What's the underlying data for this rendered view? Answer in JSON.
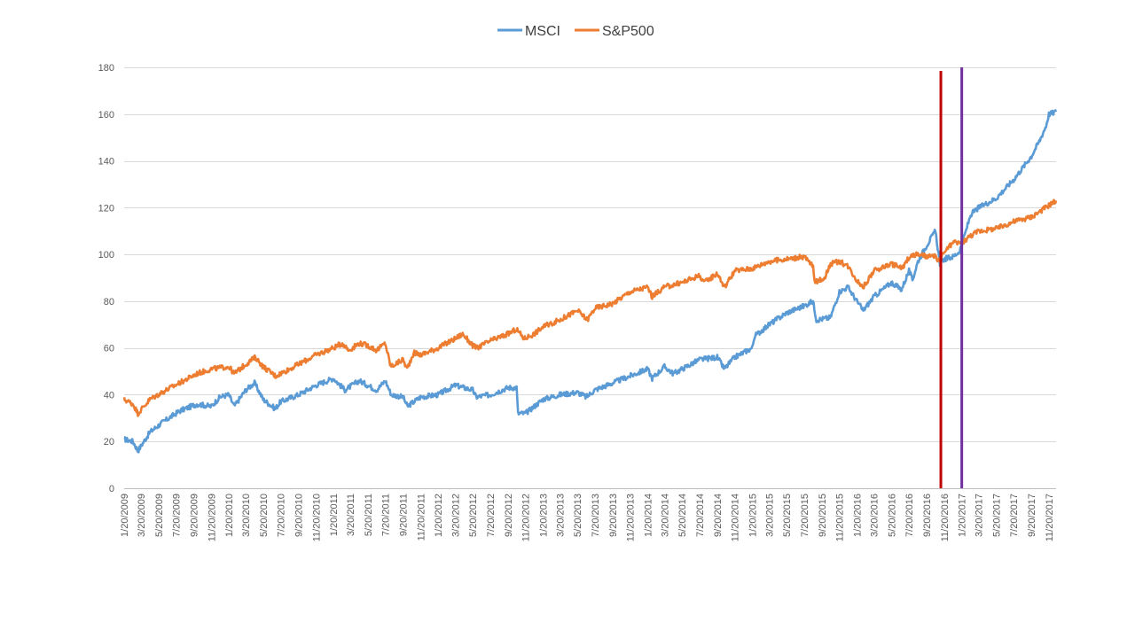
{
  "chart_data": {
    "type": "line",
    "title": "",
    "xlabel": "",
    "ylabel": "",
    "ylim": [
      0,
      180
    ],
    "yticks": [
      "0",
      "20",
      "40",
      "60",
      "80",
      "100",
      "120",
      "140",
      "160",
      "180"
    ],
    "grid": "horizontal",
    "legend_position": "top-center",
    "x_domain": [
      "2009-01-20",
      "2017-12-15"
    ],
    "xtick_labels": [
      "1/20/2009",
      "3/20/2009",
      "5/20/2009",
      "7/20/2009",
      "9/20/2009",
      "11/20/2009",
      "1/20/2010",
      "3/20/2010",
      "5/20/2010",
      "7/20/2010",
      "9/20/2010",
      "11/20/2010",
      "1/20/2011",
      "3/20/2011",
      "5/20/2011",
      "7/20/2011",
      "9/20/2011",
      "11/20/2011",
      "1/20/2012",
      "3/20/2012",
      "5/20/2012",
      "7/20/2012",
      "9/20/2012",
      "11/20/2012",
      "1/20/2013",
      "3/20/2013",
      "5/20/2013",
      "7/20/2013",
      "9/20/2013",
      "11/20/2013",
      "1/20/2014",
      "3/20/2014",
      "5/20/2014",
      "7/20/2014",
      "9/20/2014",
      "11/20/2014",
      "1/20/2015",
      "3/20/2015",
      "5/20/2015",
      "7/20/2015",
      "9/20/2015",
      "11/20/2015",
      "1/20/2016",
      "3/20/2016",
      "5/20/2016",
      "7/20/2016",
      "9/20/2016",
      "11/20/2016",
      "1/20/2017",
      "3/20/2017",
      "5/20/2017",
      "7/20/2017",
      "9/20/2017",
      "11/20/2017"
    ],
    "series": [
      {
        "name": "MSCI",
        "color": "#5B9BD5",
        "points": [
          [
            "2009-01-20",
            21
          ],
          [
            "2009-02-20",
            20
          ],
          [
            "2009-03-09",
            16
          ],
          [
            "2009-04-20",
            24
          ],
          [
            "2009-06-01",
            28
          ],
          [
            "2009-08-01",
            33
          ],
          [
            "2009-10-01",
            36
          ],
          [
            "2009-11-20",
            35
          ],
          [
            "2009-12-20",
            39
          ],
          [
            "2010-01-20",
            40
          ],
          [
            "2010-02-08",
            35
          ],
          [
            "2010-03-20",
            42
          ],
          [
            "2010-04-20",
            45
          ],
          [
            "2010-05-20",
            38
          ],
          [
            "2010-07-01",
            34
          ],
          [
            "2010-07-20",
            37
          ],
          [
            "2010-09-20",
            40
          ],
          [
            "2010-11-20",
            44
          ],
          [
            "2011-01-20",
            47
          ],
          [
            "2011-03-01",
            42
          ],
          [
            "2011-04-20",
            46
          ],
          [
            "2011-05-20",
            44
          ],
          [
            "2011-06-20",
            42
          ],
          [
            "2011-07-20",
            46
          ],
          [
            "2011-08-10",
            40
          ],
          [
            "2011-09-20",
            39
          ],
          [
            "2011-10-05",
            35
          ],
          [
            "2011-11-20",
            39
          ],
          [
            "2012-01-20",
            40
          ],
          [
            "2012-03-20",
            44
          ],
          [
            "2012-05-20",
            42
          ],
          [
            "2012-06-01",
            39
          ],
          [
            "2012-07-20",
            40
          ],
          [
            "2012-09-20",
            43
          ],
          [
            "2012-10-20",
            43
          ],
          [
            "2012-10-25",
            32
          ],
          [
            "2012-11-20",
            32
          ],
          [
            "2013-01-20",
            38
          ],
          [
            "2013-03-20",
            40
          ],
          [
            "2013-05-20",
            41
          ],
          [
            "2013-06-20",
            39
          ],
          [
            "2013-07-20",
            42
          ],
          [
            "2013-09-20",
            45
          ],
          [
            "2013-11-20",
            48
          ],
          [
            "2014-01-20",
            51
          ],
          [
            "2014-02-05",
            47
          ],
          [
            "2014-03-20",
            52
          ],
          [
            "2014-04-20",
            49
          ],
          [
            "2014-05-20",
            51
          ],
          [
            "2014-07-20",
            55
          ],
          [
            "2014-09-20",
            56
          ],
          [
            "2014-10-15",
            51
          ],
          [
            "2014-11-20",
            56
          ],
          [
            "2014-12-20",
            58
          ],
          [
            "2015-01-20",
            60
          ],
          [
            "2015-01-28",
            65
          ],
          [
            "2015-03-20",
            70
          ],
          [
            "2015-05-20",
            75
          ],
          [
            "2015-07-20",
            78
          ],
          [
            "2015-08-20",
            80
          ],
          [
            "2015-09-01",
            72
          ],
          [
            "2015-10-20",
            73
          ],
          [
            "2015-11-20",
            84
          ],
          [
            "2015-12-20",
            86
          ],
          [
            "2016-01-20",
            80
          ],
          [
            "2016-02-11",
            76
          ],
          [
            "2016-03-20",
            82
          ],
          [
            "2016-05-20",
            88
          ],
          [
            "2016-06-24",
            85
          ],
          [
            "2016-07-20",
            93
          ],
          [
            "2016-08-01",
            89
          ],
          [
            "2016-08-20",
            97
          ],
          [
            "2016-09-20",
            104
          ],
          [
            "2016-10-20",
            110
          ],
          [
            "2016-11-05",
            96
          ],
          [
            "2016-11-20",
            98
          ],
          [
            "2016-12-20",
            99
          ],
          [
            "2017-01-10",
            101
          ],
          [
            "2017-01-20",
            104
          ],
          [
            "2017-02-20",
            117
          ],
          [
            "2017-03-20",
            120
          ],
          [
            "2017-05-20",
            124
          ],
          [
            "2017-07-20",
            132
          ],
          [
            "2017-09-20",
            142
          ],
          [
            "2017-10-20",
            149
          ],
          [
            "2017-11-10",
            155
          ],
          [
            "2017-11-20",
            160
          ],
          [
            "2017-12-15",
            161
          ]
        ]
      },
      {
        "name": "S&P500",
        "color": "#ED7D31",
        "points": [
          [
            "2009-01-20",
            38
          ],
          [
            "2009-02-20",
            36
          ],
          [
            "2009-03-09",
            32
          ],
          [
            "2009-04-20",
            38
          ],
          [
            "2009-06-01",
            41
          ],
          [
            "2009-08-01",
            45
          ],
          [
            "2009-10-01",
            49
          ],
          [
            "2009-11-20",
            51
          ],
          [
            "2010-01-20",
            52
          ],
          [
            "2010-02-08",
            49
          ],
          [
            "2010-03-20",
            53
          ],
          [
            "2010-04-23",
            56
          ],
          [
            "2010-05-20",
            52
          ],
          [
            "2010-07-02",
            48
          ],
          [
            "2010-08-20",
            51
          ],
          [
            "2010-09-20",
            53
          ],
          [
            "2010-11-20",
            57
          ],
          [
            "2011-01-20",
            60
          ],
          [
            "2011-02-20",
            62
          ],
          [
            "2011-03-15",
            59
          ],
          [
            "2011-04-20",
            62
          ],
          [
            "2011-05-20",
            61
          ],
          [
            "2011-06-20",
            59
          ],
          [
            "2011-07-20",
            62
          ],
          [
            "2011-08-08",
            52
          ],
          [
            "2011-09-20",
            55
          ],
          [
            "2011-10-04",
            51
          ],
          [
            "2011-10-27",
            58
          ],
          [
            "2011-11-20",
            57
          ],
          [
            "2012-01-20",
            60
          ],
          [
            "2012-03-20",
            64
          ],
          [
            "2012-04-15",
            66
          ],
          [
            "2012-05-20",
            61
          ],
          [
            "2012-06-04",
            60
          ],
          [
            "2012-07-20",
            63
          ],
          [
            "2012-09-20",
            66
          ],
          [
            "2012-10-20",
            68
          ],
          [
            "2012-11-15",
            64
          ],
          [
            "2012-12-20",
            66
          ],
          [
            "2013-01-20",
            69
          ],
          [
            "2013-03-20",
            72
          ],
          [
            "2013-05-20",
            76
          ],
          [
            "2013-06-24",
            72
          ],
          [
            "2013-07-20",
            77
          ],
          [
            "2013-09-20",
            79
          ],
          [
            "2013-11-20",
            84
          ],
          [
            "2014-01-20",
            86
          ],
          [
            "2014-02-05",
            82
          ],
          [
            "2014-03-20",
            86
          ],
          [
            "2014-05-20",
            88
          ],
          [
            "2014-07-20",
            91
          ],
          [
            "2014-08-07",
            88
          ],
          [
            "2014-09-20",
            92
          ],
          [
            "2014-10-15",
            86
          ],
          [
            "2014-11-20",
            93
          ],
          [
            "2015-01-20",
            94
          ],
          [
            "2015-03-20",
            97
          ],
          [
            "2015-05-20",
            98
          ],
          [
            "2015-07-20",
            99
          ],
          [
            "2015-08-20",
            95
          ],
          [
            "2015-08-25",
            88
          ],
          [
            "2015-09-29",
            90
          ],
          [
            "2015-10-20",
            96
          ],
          [
            "2015-11-20",
            97
          ],
          [
            "2015-12-20",
            95
          ],
          [
            "2016-01-20",
            89
          ],
          [
            "2016-02-11",
            86
          ],
          [
            "2016-03-20",
            93
          ],
          [
            "2016-05-20",
            96
          ],
          [
            "2016-06-27",
            94
          ],
          [
            "2016-07-20",
            99
          ],
          [
            "2016-08-20",
            100
          ],
          [
            "2016-09-20",
            99
          ],
          [
            "2016-10-20",
            99
          ],
          [
            "2016-11-04",
            97
          ],
          [
            "2016-11-20",
            101
          ],
          [
            "2016-12-20",
            105
          ],
          [
            "2017-01-20",
            105
          ],
          [
            "2017-02-20",
            108
          ],
          [
            "2017-03-20",
            110
          ],
          [
            "2017-05-20",
            111
          ],
          [
            "2017-07-20",
            114
          ],
          [
            "2017-09-20",
            116
          ],
          [
            "2017-11-20",
            121
          ],
          [
            "2017-12-15",
            123
          ]
        ]
      }
    ],
    "vertical_markers": [
      {
        "date": "2016-11-08",
        "color": "#C00000"
      },
      {
        "date": "2017-01-20",
        "color": "#7030A0"
      }
    ]
  }
}
